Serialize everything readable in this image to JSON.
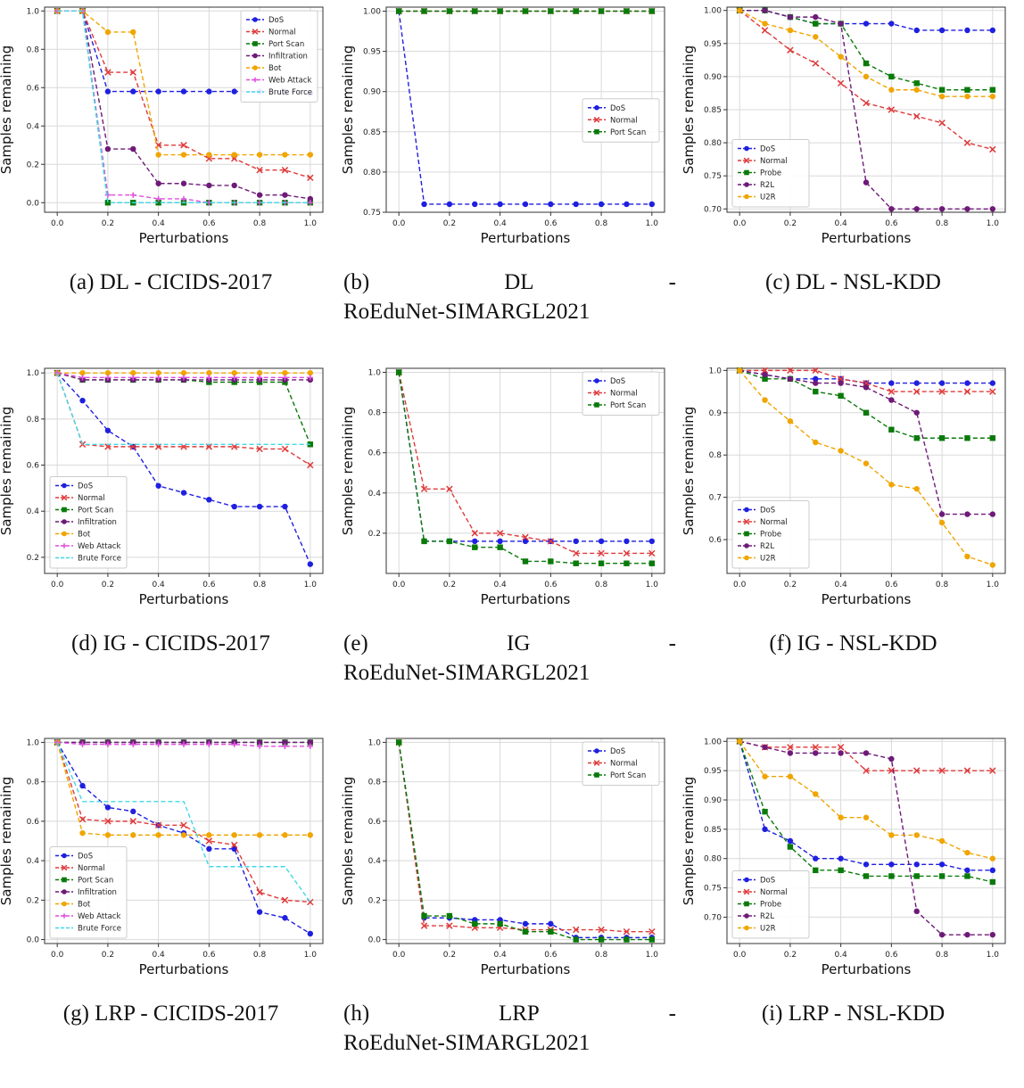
{
  "figure": {
    "common": {
      "xlabel": "Perturbations",
      "ylabel": "Samples remaining"
    },
    "styles": {
      "DoS": {
        "color": "#1f1fe0",
        "marker": "circle"
      },
      "Normal": {
        "color": "#e03a3a",
        "marker": "x"
      },
      "Port Scan": {
        "color": "#0a7a0a",
        "marker": "square"
      },
      "Probe": {
        "color": "#0a7a0a",
        "marker": "square"
      },
      "Infiltration": {
        "color": "#6e1a78",
        "marker": "circle"
      },
      "R2L": {
        "color": "#6e1a78",
        "marker": "circle"
      },
      "Bot": {
        "color": "#f0a500",
        "marker": "circle"
      },
      "U2R": {
        "color": "#f0a500",
        "marker": "circle"
      },
      "Web Attack": {
        "color": "#e050e0",
        "marker": "plus"
      },
      "Brute Force": {
        "color": "#40d8e8",
        "marker": "none"
      }
    }
  },
  "chart_data": [
    {
      "id": "a",
      "type": "line",
      "caption": [
        "(a) DL - CICIDS-2017"
      ],
      "xlabel": "Perturbations",
      "ylabel": "Samples remaining",
      "x": [
        0,
        0.1,
        0.2,
        0.3,
        0.4,
        0.5,
        0.6,
        0.7,
        0.8,
        0.9,
        1.0
      ],
      "xlim": [
        0,
        1
      ],
      "ylim": [
        -0.05,
        1.02
      ],
      "xticks": [
        "0.0",
        "0.2",
        "0.4",
        "0.6",
        "0.8",
        "1.0"
      ],
      "yticks": [
        "0.0",
        "0.2",
        "0.4",
        "0.6",
        "0.8",
        "1.0"
      ],
      "legend": "top-right",
      "series": [
        {
          "name": "DoS",
          "values": [
            1,
            1,
            0.58,
            0.58,
            0.58,
            0.58,
            0.58,
            0.58,
            0.58,
            0.58,
            0.57
          ]
        },
        {
          "name": "Normal",
          "values": [
            1,
            1,
            0.68,
            0.68,
            0.3,
            0.3,
            0.23,
            0.23,
            0.17,
            0.17,
            0.13
          ]
        },
        {
          "name": "Port Scan",
          "values": [
            1,
            1,
            0.0,
            0.0,
            0.0,
            0.0,
            0.0,
            0.0,
            0.0,
            0.0,
            0.0
          ]
        },
        {
          "name": "Infiltration",
          "values": [
            1,
            1,
            0.28,
            0.28,
            0.1,
            0.1,
            0.09,
            0.09,
            0.04,
            0.04,
            0.02
          ]
        },
        {
          "name": "Bot",
          "values": [
            1,
            1,
            0.89,
            0.89,
            0.25,
            0.25,
            0.25,
            0.25,
            0.25,
            0.25,
            0.25
          ]
        },
        {
          "name": "Web Attack",
          "values": [
            1,
            1,
            0.04,
            0.04,
            0.02,
            0.02,
            0.0,
            0.0,
            0.0,
            0.0,
            0.0
          ]
        },
        {
          "name": "Brute Force",
          "values": [
            1,
            1,
            0.0,
            0.0,
            0.0,
            0.0,
            0.0,
            0.0,
            0.0,
            0.0,
            0.0
          ]
        }
      ]
    },
    {
      "id": "b",
      "type": "line",
      "caption": [
        "(b)",
        "DL",
        "-",
        "RoEduNet-SIMARGL2021"
      ],
      "xlabel": "Perturbations",
      "ylabel": "Samples remaining",
      "x": [
        0,
        0.1,
        0.2,
        0.3,
        0.4,
        0.5,
        0.6,
        0.7,
        0.8,
        0.9,
        1.0
      ],
      "xlim": [
        0,
        1
      ],
      "ylim": [
        0.75,
        1.005
      ],
      "xticks": [
        "0.0",
        "0.2",
        "0.4",
        "0.6",
        "0.8",
        "1.0"
      ],
      "yticks": [
        "0.75",
        "0.80",
        "0.85",
        "0.90",
        "0.95",
        "1.00"
      ],
      "legend": "center-right",
      "series": [
        {
          "name": "DoS",
          "values": [
            1,
            0.76,
            0.76,
            0.76,
            0.76,
            0.76,
            0.76,
            0.76,
            0.76,
            0.76,
            0.76
          ]
        },
        {
          "name": "Normal",
          "values": [
            1,
            1,
            1,
            1,
            1,
            1,
            1,
            1,
            1,
            1,
            1
          ]
        },
        {
          "name": "Port Scan",
          "values": [
            1,
            1,
            1,
            1,
            1,
            1,
            1,
            1,
            1,
            1,
            1
          ]
        }
      ]
    },
    {
      "id": "c",
      "type": "line",
      "caption": [
        "(c) DL - NSL-KDD"
      ],
      "xlabel": "Perturbations",
      "ylabel": "Samples remaining",
      "x": [
        0,
        0.1,
        0.2,
        0.3,
        0.4,
        0.5,
        0.6,
        0.7,
        0.8,
        0.9,
        1.0
      ],
      "xlim": [
        0,
        1
      ],
      "ylim": [
        0.695,
        1.005
      ],
      "xticks": [
        "0.0",
        "0.2",
        "0.4",
        "0.6",
        "0.8",
        "1.0"
      ],
      "yticks": [
        "0.70",
        "0.75",
        "0.80",
        "0.85",
        "0.90",
        "0.95",
        "1.00"
      ],
      "legend": "bottom-left",
      "series": [
        {
          "name": "DoS",
          "values": [
            1,
            1,
            0.99,
            0.98,
            0.98,
            0.98,
            0.98,
            0.97,
            0.97,
            0.97,
            0.97
          ]
        },
        {
          "name": "Normal",
          "values": [
            1,
            0.97,
            0.94,
            0.92,
            0.89,
            0.86,
            0.85,
            0.84,
            0.83,
            0.8,
            0.79
          ]
        },
        {
          "name": "Probe",
          "values": [
            1,
            1,
            0.99,
            0.98,
            0.98,
            0.92,
            0.9,
            0.89,
            0.88,
            0.88,
            0.88
          ]
        },
        {
          "name": "R2L",
          "values": [
            1,
            1,
            0.99,
            0.99,
            0.98,
            0.74,
            0.7,
            0.7,
            0.7,
            0.7,
            0.7
          ]
        },
        {
          "name": "U2R",
          "values": [
            1,
            0.98,
            0.97,
            0.96,
            0.93,
            0.9,
            0.88,
            0.88,
            0.87,
            0.87,
            0.87
          ]
        }
      ]
    },
    {
      "id": "d",
      "type": "line",
      "caption": [
        "(d) IG - CICIDS-2017"
      ],
      "xlabel": "Perturbations",
      "ylabel": "Samples remaining",
      "x": [
        0,
        0.1,
        0.2,
        0.3,
        0.4,
        0.5,
        0.6,
        0.7,
        0.8,
        0.9,
        1.0
      ],
      "xlim": [
        0,
        1
      ],
      "ylim": [
        0.13,
        1.02
      ],
      "xticks": [
        "0.0",
        "0.2",
        "0.4",
        "0.6",
        "0.8",
        "1.0"
      ],
      "yticks": [
        "0.2",
        "0.4",
        "0.6",
        "0.8",
        "1.0"
      ],
      "legend": "bottom-left",
      "series": [
        {
          "name": "DoS",
          "values": [
            1,
            0.88,
            0.75,
            0.68,
            0.51,
            0.48,
            0.45,
            0.42,
            0.42,
            0.42,
            0.17
          ]
        },
        {
          "name": "Normal",
          "values": [
            1,
            0.69,
            0.68,
            0.68,
            0.68,
            0.68,
            0.68,
            0.68,
            0.67,
            0.67,
            0.6
          ]
        },
        {
          "name": "Port Scan",
          "values": [
            1,
            0.97,
            0.97,
            0.97,
            0.97,
            0.97,
            0.96,
            0.96,
            0.96,
            0.96,
            0.69
          ]
        },
        {
          "name": "Infiltration",
          "values": [
            1,
            0.97,
            0.97,
            0.97,
            0.97,
            0.97,
            0.97,
            0.97,
            0.97,
            0.97,
            0.97
          ]
        },
        {
          "name": "Bot",
          "values": [
            1,
            1,
            1,
            1,
            1,
            1,
            1,
            1,
            1,
            1,
            1
          ]
        },
        {
          "name": "Web Attack",
          "values": [
            1,
            0.98,
            0.98,
            0.98,
            0.98,
            0.98,
            0.98,
            0.98,
            0.98,
            0.98,
            0.98
          ]
        },
        {
          "name": "Brute Force",
          "values": [
            1,
            0.69,
            0.69,
            0.69,
            0.69,
            0.69,
            0.69,
            0.69,
            0.69,
            0.69,
            0.69
          ]
        }
      ]
    },
    {
      "id": "e",
      "type": "line",
      "caption": [
        "(e)",
        "IG",
        "-",
        "RoEduNet-SIMARGL2021"
      ],
      "xlabel": "Perturbations",
      "ylabel": "Samples remaining",
      "x": [
        0,
        0.1,
        0.2,
        0.3,
        0.4,
        0.5,
        0.6,
        0.7,
        0.8,
        0.9,
        1.0
      ],
      "xlim": [
        0,
        1
      ],
      "ylim": [
        0.0,
        1.02
      ],
      "xticks": [
        "0.0",
        "0.2",
        "0.4",
        "0.6",
        "0.8",
        "1.0"
      ],
      "yticks": [
        "0.2",
        "0.4",
        "0.6",
        "0.8",
        "1.0"
      ],
      "legend": "top-right",
      "series": [
        {
          "name": "DoS",
          "values": [
            1,
            0.16,
            0.16,
            0.16,
            0.16,
            0.16,
            0.16,
            0.16,
            0.16,
            0.16,
            0.16
          ]
        },
        {
          "name": "Normal",
          "values": [
            1,
            0.42,
            0.42,
            0.2,
            0.2,
            0.18,
            0.16,
            0.1,
            0.1,
            0.1,
            0.1
          ]
        },
        {
          "name": "Port Scan",
          "values": [
            1,
            0.16,
            0.16,
            0.13,
            0.13,
            0.06,
            0.06,
            0.05,
            0.05,
            0.05,
            0.05
          ]
        }
      ]
    },
    {
      "id": "f",
      "type": "line",
      "caption": [
        "(f) IG - NSL-KDD"
      ],
      "xlabel": "Perturbations",
      "ylabel": "Samples remaining",
      "x": [
        0,
        0.1,
        0.2,
        0.3,
        0.4,
        0.5,
        0.6,
        0.7,
        0.8,
        0.9,
        1.0
      ],
      "xlim": [
        0,
        1
      ],
      "ylim": [
        0.52,
        1.005
      ],
      "xticks": [
        "0.0",
        "0.2",
        "0.4",
        "0.6",
        "0.8",
        "1.0"
      ],
      "yticks": [
        "0.6",
        "0.7",
        "0.8",
        "0.9",
        "1.0"
      ],
      "legend": "bottom-left",
      "series": [
        {
          "name": "DoS",
          "values": [
            1,
            0.99,
            0.98,
            0.98,
            0.98,
            0.97,
            0.97,
            0.97,
            0.97,
            0.97,
            0.97
          ]
        },
        {
          "name": "Normal",
          "values": [
            1,
            1,
            1,
            1,
            0.98,
            0.97,
            0.95,
            0.95,
            0.95,
            0.95,
            0.95
          ]
        },
        {
          "name": "Probe",
          "values": [
            1,
            0.98,
            0.98,
            0.95,
            0.94,
            0.9,
            0.86,
            0.84,
            0.84,
            0.84,
            0.84
          ]
        },
        {
          "name": "R2L",
          "values": [
            1,
            0.99,
            0.98,
            0.97,
            0.97,
            0.96,
            0.93,
            0.9,
            0.66,
            0.66,
            0.66
          ]
        },
        {
          "name": "U2R",
          "values": [
            1,
            0.93,
            0.88,
            0.83,
            0.81,
            0.78,
            0.73,
            0.72,
            0.64,
            0.56,
            0.54
          ]
        }
      ]
    },
    {
      "id": "g",
      "type": "line",
      "caption": [
        "(g) LRP - CICIDS-2017"
      ],
      "xlabel": "Perturbations",
      "ylabel": "Samples remaining",
      "x": [
        0,
        0.1,
        0.2,
        0.3,
        0.4,
        0.5,
        0.6,
        0.7,
        0.8,
        0.9,
        1.0
      ],
      "xlim": [
        0,
        1
      ],
      "ylim": [
        -0.02,
        1.02
      ],
      "xticks": [
        "0.0",
        "0.2",
        "0.4",
        "0.6",
        "0.8",
        "1.0"
      ],
      "yticks": [
        "0.0",
        "0.2",
        "0.4",
        "0.6",
        "0.8",
        "1.0"
      ],
      "legend": "bottom-left",
      "series": [
        {
          "name": "DoS",
          "values": [
            1,
            0.78,
            0.67,
            0.65,
            0.58,
            0.54,
            0.46,
            0.46,
            0.14,
            0.11,
            0.03
          ]
        },
        {
          "name": "Normal",
          "values": [
            1,
            0.61,
            0.6,
            0.6,
            0.58,
            0.58,
            0.5,
            0.48,
            0.24,
            0.2,
            0.19
          ]
        },
        {
          "name": "Port Scan",
          "values": [
            1,
            1,
            1,
            1,
            1,
            1,
            1,
            1,
            1,
            1,
            1
          ]
        },
        {
          "name": "Infiltration",
          "values": [
            1,
            1,
            1,
            1,
            1,
            1,
            1,
            1,
            1,
            1,
            1
          ]
        },
        {
          "name": "Bot",
          "values": [
            1,
            0.54,
            0.53,
            0.53,
            0.53,
            0.53,
            0.53,
            0.53,
            0.53,
            0.53,
            0.53
          ]
        },
        {
          "name": "Web Attack",
          "values": [
            1,
            0.99,
            0.99,
            0.99,
            0.99,
            0.99,
            0.99,
            0.99,
            0.98,
            0.98,
            0.98
          ]
        },
        {
          "name": "Brute Force",
          "values": [
            1,
            0.7,
            0.7,
            0.7,
            0.7,
            0.7,
            0.37,
            0.37,
            0.37,
            0.37,
            0.19
          ]
        }
      ]
    },
    {
      "id": "h",
      "type": "line",
      "caption": [
        "(h)",
        "LRP",
        "-",
        "RoEduNet-SIMARGL2021"
      ],
      "xlabel": "Perturbations",
      "ylabel": "Samples remaining",
      "x": [
        0,
        0.1,
        0.2,
        0.3,
        0.4,
        0.5,
        0.6,
        0.7,
        0.8,
        0.9,
        1.0
      ],
      "xlim": [
        0,
        1
      ],
      "ylim": [
        -0.02,
        1.02
      ],
      "xticks": [
        "0.0",
        "0.2",
        "0.4",
        "0.6",
        "0.8",
        "1.0"
      ],
      "yticks": [
        "0.0",
        "0.2",
        "0.4",
        "0.6",
        "0.8",
        "1.0"
      ],
      "legend": "top-right",
      "series": [
        {
          "name": "DoS",
          "values": [
            1,
            0.11,
            0.11,
            0.1,
            0.1,
            0.08,
            0.08,
            0.01,
            0.01,
            0.01,
            0.01
          ]
        },
        {
          "name": "Normal",
          "values": [
            1,
            0.07,
            0.07,
            0.06,
            0.06,
            0.05,
            0.05,
            0.05,
            0.05,
            0.04,
            0.04
          ]
        },
        {
          "name": "Port Scan",
          "values": [
            1,
            0.12,
            0.12,
            0.08,
            0.08,
            0.04,
            0.04,
            0.0,
            0.0,
            0.0,
            0.0
          ]
        }
      ]
    },
    {
      "id": "i",
      "type": "line",
      "caption": [
        "(i) LRP - NSL-KDD"
      ],
      "xlabel": "Perturbations",
      "ylabel": "Samples remaining",
      "x": [
        0,
        0.1,
        0.2,
        0.3,
        0.4,
        0.5,
        0.6,
        0.7,
        0.8,
        0.9,
        1.0
      ],
      "xlim": [
        0,
        1
      ],
      "ylim": [
        0.655,
        1.005
      ],
      "xticks": [
        "0.0",
        "0.2",
        "0.4",
        "0.6",
        "0.8",
        "1.0"
      ],
      "yticks": [
        "0.70",
        "0.75",
        "0.80",
        "0.85",
        "0.90",
        "0.95",
        "1.00"
      ],
      "legend": "bottom-left",
      "series": [
        {
          "name": "DoS",
          "values": [
            1,
            0.85,
            0.83,
            0.8,
            0.8,
            0.79,
            0.79,
            0.79,
            0.79,
            0.78,
            0.78
          ]
        },
        {
          "name": "Normal",
          "values": [
            1,
            0.99,
            0.99,
            0.99,
            0.99,
            0.95,
            0.95,
            0.95,
            0.95,
            0.95,
            0.95
          ]
        },
        {
          "name": "Probe",
          "values": [
            1,
            0.88,
            0.82,
            0.78,
            0.78,
            0.77,
            0.77,
            0.77,
            0.77,
            0.77,
            0.76
          ]
        },
        {
          "name": "R2L",
          "values": [
            1,
            0.99,
            0.98,
            0.98,
            0.98,
            0.98,
            0.97,
            0.71,
            0.67,
            0.67,
            0.67
          ]
        },
        {
          "name": "U2R",
          "values": [
            1,
            0.94,
            0.94,
            0.91,
            0.87,
            0.87,
            0.84,
            0.84,
            0.83,
            0.81,
            0.8
          ]
        }
      ]
    }
  ]
}
